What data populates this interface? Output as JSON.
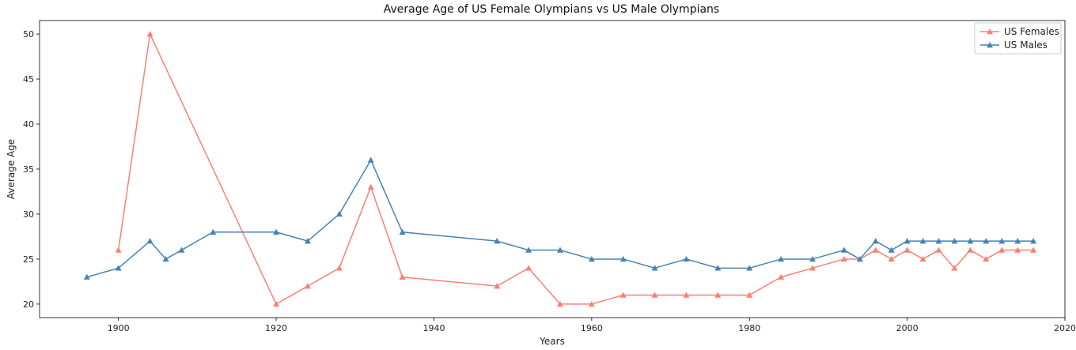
{
  "chart_data": {
    "type": "line",
    "title": "Average Age of US Female Olympians vs US Male Olympians",
    "xlabel": "Years",
    "ylabel": "Average Age",
    "xlim": [
      1890,
      2020
    ],
    "ylim": [
      18.5,
      51.5
    ],
    "xticks": [
      1900,
      1920,
      1940,
      1960,
      1980,
      2000,
      2020
    ],
    "yticks": [
      20,
      25,
      30,
      35,
      40,
      45,
      50
    ],
    "legend_position": "top-right",
    "grid": false,
    "series": [
      {
        "name": "US Females",
        "color": "#fa8072",
        "marker": "triangle-up",
        "x": [
          1900,
          1904,
          1920,
          1924,
          1928,
          1932,
          1936,
          1948,
          1952,
          1956,
          1960,
          1964,
          1968,
          1972,
          1976,
          1980,
          1984,
          1988,
          1992,
          1994,
          1996,
          1998,
          2000,
          2002,
          2004,
          2006,
          2008,
          2010,
          2012,
          2014,
          2016
        ],
        "y": [
          26,
          50,
          20,
          22,
          24,
          33,
          23,
          22,
          24,
          20,
          20,
          21,
          21,
          21,
          21,
          21,
          23,
          24,
          25,
          25,
          26,
          25,
          26,
          25,
          26,
          24,
          26,
          25,
          26,
          26,
          26
        ]
      },
      {
        "name": "US Males",
        "color": "#4682b4",
        "marker": "triangle-up",
        "x": [
          1896,
          1900,
          1904,
          1906,
          1908,
          1912,
          1920,
          1924,
          1928,
          1932,
          1936,
          1948,
          1952,
          1956,
          1960,
          1964,
          1968,
          1972,
          1976,
          1980,
          1984,
          1988,
          1992,
          1994,
          1996,
          1998,
          2000,
          2002,
          2004,
          2006,
          2008,
          2010,
          2012,
          2014,
          2016
        ],
        "y": [
          23,
          24,
          27,
          25,
          26,
          28,
          28,
          27,
          30,
          36,
          28,
          27,
          26,
          26,
          25,
          25,
          24,
          25,
          24,
          24,
          25,
          25,
          26,
          25,
          27,
          26,
          27,
          27,
          27,
          27,
          27,
          27,
          27,
          27,
          27
        ]
      }
    ]
  }
}
